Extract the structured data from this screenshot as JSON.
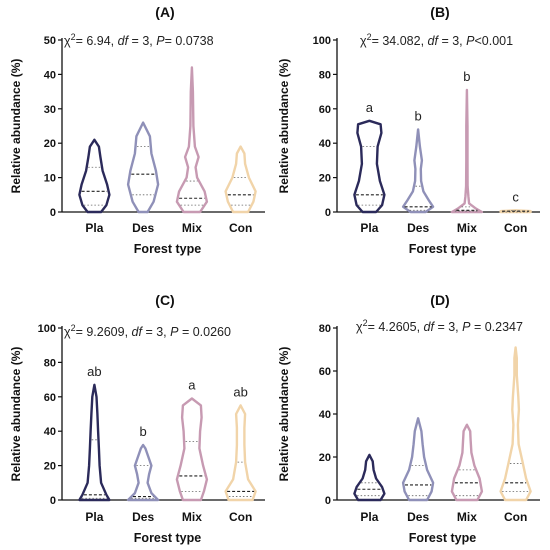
{
  "colors": {
    "Pla": "#2b2a5a",
    "Des": "#8f90b8",
    "Mix": "#c79ab2",
    "Con": "#f1d4a9",
    "text": "#111111"
  },
  "chart_data": [
    {
      "type": "violin",
      "panel": "(A)",
      "stat_parts": [
        "χ",
        "2",
        "=  6.94, ",
        "df",
        " = 3, ",
        "P",
        "= 0.0738"
      ],
      "ylabel": "Relative abundance (%)",
      "xlabel": "Forest type",
      "ylim": [
        0,
        50
      ],
      "yticks": [
        0,
        10,
        20,
        30,
        40,
        50
      ],
      "categories": [
        "Pla",
        "Des",
        "Mix",
        "Con"
      ],
      "letters": [
        "",
        "",
        "",
        ""
      ],
      "groups": [
        {
          "min": 0,
          "max": 21,
          "q1": 2,
          "median": 6,
          "q3": 13,
          "profile": [
            [
              0,
              0.45
            ],
            [
              2,
              0.8
            ],
            [
              5,
              1
            ],
            [
              8,
              0.85
            ],
            [
              12,
              0.55
            ],
            [
              16,
              0.4
            ],
            [
              19,
              0.3
            ],
            [
              21,
              0
            ]
          ]
        },
        {
          "min": 0,
          "max": 26,
          "q1": 5,
          "median": 11,
          "q3": 19,
          "profile": [
            [
              0,
              0.3
            ],
            [
              3,
              0.7
            ],
            [
              8,
              1
            ],
            [
              12,
              0.85
            ],
            [
              17,
              0.55
            ],
            [
              22,
              0.45
            ],
            [
              26,
              0
            ]
          ]
        },
        {
          "min": 0,
          "max": 42,
          "q1": 2,
          "median": 4,
          "q3": 9,
          "profile": [
            [
              0,
              0.55
            ],
            [
              3,
              1
            ],
            [
              6,
              0.85
            ],
            [
              10,
              0.35
            ],
            [
              13,
              0.25
            ],
            [
              16,
              0.45
            ],
            [
              19,
              0.2
            ],
            [
              25,
              0.1
            ],
            [
              35,
              0.07
            ],
            [
              42,
              0
            ]
          ]
        },
        {
          "min": 0,
          "max": 19,
          "q1": 2,
          "median": 5,
          "q3": 10,
          "profile": [
            [
              0,
              0.5
            ],
            [
              3,
              0.85
            ],
            [
              6,
              1
            ],
            [
              10,
              0.55
            ],
            [
              14,
              0.3
            ],
            [
              17,
              0.25
            ],
            [
              19,
              0
            ]
          ]
        }
      ]
    },
    {
      "type": "violin",
      "panel": "(B)",
      "stat_parts": [
        "χ",
        "2",
        "=  34.082, ",
        "df",
        " = 3, ",
        "P",
        "<0.001"
      ],
      "ylabel": "Relative abundance (%)",
      "xlabel": "Forest type",
      "ylim": [
        0,
        100
      ],
      "yticks": [
        0,
        20,
        40,
        60,
        80,
        100
      ],
      "categories": [
        "Pla",
        "Des",
        "Mix",
        "Con"
      ],
      "letters": [
        "a",
        "b",
        "b",
        "c"
      ],
      "groups": [
        {
          "min": 0,
          "max": 53,
          "q1": 4,
          "median": 10,
          "q3": 38,
          "profile": [
            [
              0,
              0.45
            ],
            [
              4,
              0.85
            ],
            [
              10,
              1
            ],
            [
              18,
              0.7
            ],
            [
              28,
              0.5
            ],
            [
              38,
              0.55
            ],
            [
              46,
              0.8
            ],
            [
              51,
              0.75
            ],
            [
              53,
              0
            ]
          ]
        },
        {
          "min": 0,
          "max": 48,
          "q1": 1,
          "median": 3,
          "q3": 15,
          "profile": [
            [
              0,
              0.5
            ],
            [
              3,
              1
            ],
            [
              7,
              0.7
            ],
            [
              12,
              0.35
            ],
            [
              18,
              0.2
            ],
            [
              25,
              0.18
            ],
            [
              30,
              0.25
            ],
            [
              38,
              0.12
            ],
            [
              48,
              0
            ]
          ]
        },
        {
          "min": 0,
          "max": 71,
          "q1": 0.5,
          "median": 1,
          "q3": 3,
          "profile": [
            [
              0,
              1
            ],
            [
              2,
              0.6
            ],
            [
              5,
              0.15
            ],
            [
              9,
              0.1
            ],
            [
              15,
              0.05
            ],
            [
              30,
              0.04
            ],
            [
              50,
              0.04
            ],
            [
              71,
              0
            ]
          ]
        },
        {
          "min": 0,
          "max": 1,
          "q1": 0,
          "median": 0.5,
          "q3": 0.8,
          "profile": [
            [
              0,
              1
            ],
            [
              0.5,
              1
            ],
            [
              1,
              0
            ]
          ]
        }
      ]
    },
    {
      "type": "violin",
      "panel": "(C)",
      "stat_parts": [
        "χ",
        "2",
        "=  9.2609, ",
        "df",
        " = 3, ",
        "P",
        " =  0.0260"
      ],
      "ylabel": "Relative abundance (%)",
      "xlabel": "Forest type",
      "ylim": [
        0,
        100
      ],
      "yticks": [
        0,
        20,
        40,
        60,
        80,
        100
      ],
      "categories": [
        "Pla",
        "Des",
        "Mix",
        "Con"
      ],
      "letters": [
        "ab",
        "b",
        "a",
        "ab"
      ],
      "groups": [
        {
          "min": 0,
          "max": 67,
          "q1": 1,
          "median": 3,
          "q3": 35,
          "profile": [
            [
              0,
              1
            ],
            [
              3,
              0.8
            ],
            [
              10,
              0.45
            ],
            [
              20,
              0.35
            ],
            [
              30,
              0.3
            ],
            [
              40,
              0.25
            ],
            [
              50,
              0.2
            ],
            [
              60,
              0.14
            ],
            [
              67,
              0
            ]
          ]
        },
        {
          "min": 0,
          "max": 32,
          "q1": 1,
          "median": 2,
          "q3": 20,
          "profile": [
            [
              0,
              1
            ],
            [
              4,
              0.55
            ],
            [
              10,
              0.3
            ],
            [
              15,
              0.4
            ],
            [
              20,
              0.55
            ],
            [
              25,
              0.35
            ],
            [
              30,
              0.15
            ],
            [
              32,
              0
            ]
          ]
        },
        {
          "min": 0,
          "max": 59,
          "q1": 5,
          "median": 14,
          "q3": 34,
          "profile": [
            [
              0,
              0.6
            ],
            [
              5,
              0.8
            ],
            [
              12,
              1
            ],
            [
              20,
              0.75
            ],
            [
              30,
              0.5
            ],
            [
              40,
              0.55
            ],
            [
              48,
              0.65
            ],
            [
              55,
              0.6
            ],
            [
              59,
              0
            ]
          ]
        },
        {
          "min": 0,
          "max": 55,
          "q1": 2,
          "median": 5,
          "q3": 22,
          "profile": [
            [
              0,
              0.8
            ],
            [
              5,
              1
            ],
            [
              12,
              0.5
            ],
            [
              22,
              0.3
            ],
            [
              32,
              0.25
            ],
            [
              42,
              0.25
            ],
            [
              50,
              0.3
            ],
            [
              55,
              0
            ]
          ]
        }
      ]
    },
    {
      "type": "violin",
      "panel": "(D)",
      "stat_parts": [
        "χ",
        "2",
        "= 4.2605, ",
        "df",
        " = 3, ",
        "P",
        " = 0.2347"
      ],
      "ylabel": "Relative abundance (%)",
      "xlabel": "Forest type",
      "ylim": [
        0,
        80
      ],
      "yticks": [
        0,
        20,
        40,
        60,
        80
      ],
      "categories": [
        "Pla",
        "Des",
        "Mix",
        "Con"
      ],
      "letters": [
        "",
        "",
        "",
        ""
      ],
      "groups": [
        {
          "min": 0,
          "max": 21,
          "q1": 2,
          "median": 5,
          "q3": 8,
          "profile": [
            [
              0,
              0.75
            ],
            [
              3,
              1
            ],
            [
              6,
              0.85
            ],
            [
              10,
              0.45
            ],
            [
              14,
              0.28
            ],
            [
              18,
              0.22
            ],
            [
              21,
              0
            ]
          ]
        },
        {
          "min": 0,
          "max": 38,
          "q1": 2,
          "median": 7,
          "q3": 16,
          "profile": [
            [
              0,
              0.6
            ],
            [
              4,
              0.9
            ],
            [
              8,
              1
            ],
            [
              14,
              0.6
            ],
            [
              20,
              0.4
            ],
            [
              26,
              0.3
            ],
            [
              32,
              0.22
            ],
            [
              38,
              0
            ]
          ]
        },
        {
          "min": 0,
          "max": 35,
          "q1": 2,
          "median": 8,
          "q3": 14,
          "profile": [
            [
              0,
              0.7
            ],
            [
              4,
              1
            ],
            [
              10,
              0.85
            ],
            [
              16,
              0.5
            ],
            [
              22,
              0.3
            ],
            [
              28,
              0.25
            ],
            [
              32,
              0.22
            ],
            [
              35,
              0
            ]
          ]
        },
        {
          "min": 0,
          "max": 71,
          "q1": 4,
          "median": 8,
          "q3": 17,
          "profile": [
            [
              0,
              0.7
            ],
            [
              4,
              1
            ],
            [
              10,
              0.7
            ],
            [
              18,
              0.45
            ],
            [
              26,
              0.2
            ],
            [
              35,
              0.15
            ],
            [
              42,
              0.22
            ],
            [
              48,
              0.18
            ],
            [
              58,
              0.08
            ],
            [
              66,
              0.08
            ],
            [
              71,
              0
            ]
          ]
        }
      ]
    }
  ]
}
